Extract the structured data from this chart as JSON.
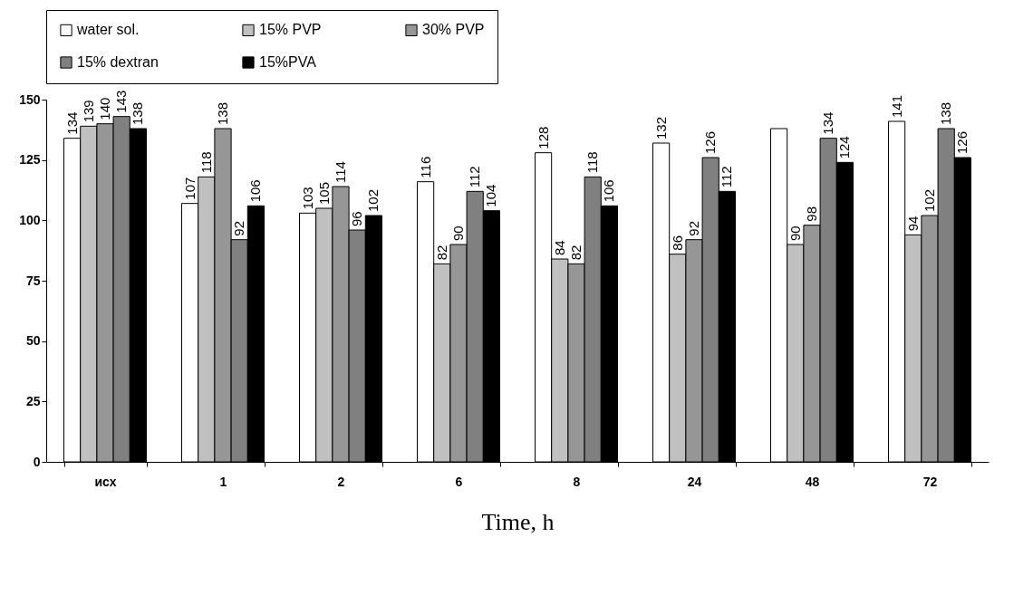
{
  "chart_data": {
    "type": "bar",
    "xlabel": "Time, h",
    "categories": [
      "исх",
      "1",
      "2",
      "6",
      "8",
      "24",
      "48",
      "72"
    ],
    "series": [
      {
        "name": "water sol.",
        "color": "#ffffff",
        "values": [
          134,
          107,
          103,
          116,
          128,
          132,
          138,
          141
        ],
        "value_labels": [
          "134",
          "107",
          "103",
          "116",
          "128",
          "132",
          null,
          "141"
        ]
      },
      {
        "name": "15% PVP",
        "color": "#c0c0c0",
        "values": [
          139,
          118,
          105,
          82,
          84,
          86,
          90,
          94
        ],
        "value_labels": [
          "139",
          "118",
          "105",
          "82",
          "84",
          "86",
          "90",
          "94"
        ]
      },
      {
        "name": "30% PVP",
        "color": "#969696",
        "values": [
          140,
          138,
          114,
          90,
          82,
          92,
          98,
          102
        ],
        "value_labels": [
          "140",
          "138",
          "114",
          "90",
          "82",
          "92",
          "98",
          "102"
        ]
      },
      {
        "name": "15% dextran",
        "color": "#808080",
        "values": [
          143,
          92,
          96,
          112,
          118,
          126,
          134,
          138
        ],
        "value_labels": [
          "143",
          "92",
          "96",
          "112",
          "118",
          "126",
          "134",
          "138"
        ]
      },
      {
        "name": "15%PVA",
        "color": "#000000",
        "values": [
          138,
          106,
          102,
          104,
          106,
          112,
          124,
          126
        ],
        "value_labels": [
          "138",
          "106",
          "102",
          "104",
          "106",
          "112",
          "124",
          "126"
        ]
      }
    ],
    "ylim": [
      0,
      150
    ],
    "yticks": [
      0,
      25,
      50,
      75,
      100,
      125,
      150
    ],
    "grid": false,
    "legend": "top"
  }
}
